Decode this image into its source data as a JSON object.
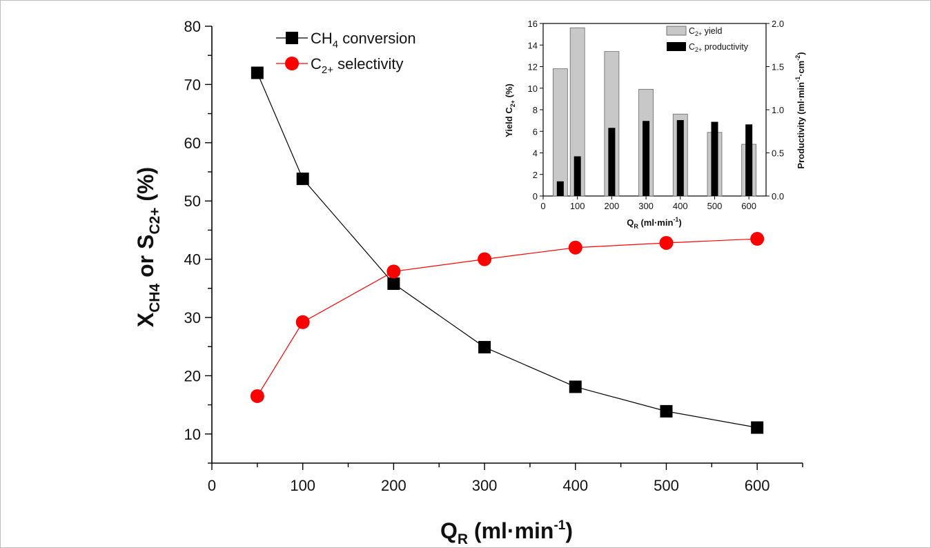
{
  "chart_data": [
    {
      "type": "line",
      "xlabel": {
        "main": "Q",
        "sub": "R",
        "unit_open": " (ml·min",
        "unit_sup": "-1",
        "unit_close": ")"
      },
      "ylabel": {
        "p1": "X",
        "sub1": "CH4",
        "mid": " or S",
        "sub2": "C2+",
        "tail": " (%)"
      },
      "xlim": [
        0,
        650
      ],
      "ylim": [
        5,
        80
      ],
      "x_ticks": [
        0,
        100,
        200,
        300,
        400,
        500,
        600
      ],
      "y_ticks": [
        10,
        20,
        30,
        40,
        50,
        60,
        70,
        80
      ],
      "x": [
        50,
        100,
        200,
        300,
        400,
        500,
        600
      ],
      "series": [
        {
          "name": "CH4 conversion",
          "legend": {
            "main": "CH",
            "sub": "4",
            "rest": " conversion"
          },
          "marker": "square",
          "color": "#000000",
          "values": [
            72,
            53.8,
            35.8,
            24.9,
            18.1,
            13.9,
            11.1
          ]
        },
        {
          "name": "C2+ selectivity",
          "legend": {
            "main": "C",
            "sub": "2+",
            "rest": " selectivity"
          },
          "marker": "circle",
          "color": "#ff0000",
          "values": [
            16.5,
            29.2,
            37.9,
            40.0,
            42.0,
            42.8,
            43.5
          ]
        }
      ]
    },
    {
      "type": "bar",
      "inset": true,
      "xlabel": {
        "main": "Q",
        "sub": "R",
        "unit_open": " (ml·min",
        "unit_sup": "-1",
        "unit_close": ")"
      },
      "ylabel_left": {
        "main": "Yield C",
        "sub": "2+",
        "tail": " (%)"
      },
      "ylabel_right": {
        "main": "Productivity (ml·min",
        "sup1": "-1",
        "mid": "·cm",
        "sup2": "-2",
        "tail": ")"
      },
      "xlim": [
        0,
        650
      ],
      "ylim_left": [
        0,
        16
      ],
      "ylim_right": [
        0,
        2.0
      ],
      "x_ticks": [
        0,
        100,
        200,
        300,
        400,
        500,
        600
      ],
      "y_ticks_left": [
        "0",
        "2",
        "4",
        "6",
        "8",
        "10",
        "12",
        "14",
        "16"
      ],
      "y_ticks_right": [
        "0.0",
        "0.5",
        "1.0",
        "1.5",
        "2.0"
      ],
      "x": [
        50,
        100,
        200,
        300,
        400,
        500,
        600
      ],
      "series": [
        {
          "name": "C2+ yield",
          "legend": {
            "main": "C",
            "sub": "2+",
            "rest": " yield"
          },
          "axis": "left",
          "color": "#c8c8c8",
          "values": [
            11.8,
            15.6,
            13.4,
            9.9,
            7.6,
            5.9,
            4.8
          ]
        },
        {
          "name": "C2+ productivity",
          "legend": {
            "main": "C",
            "sub": "2+",
            "rest": " productivity"
          },
          "axis": "right",
          "color": "#000000",
          "values": [
            0.17,
            0.46,
            0.79,
            0.87,
            0.88,
            0.86,
            0.83
          ]
        }
      ]
    }
  ]
}
